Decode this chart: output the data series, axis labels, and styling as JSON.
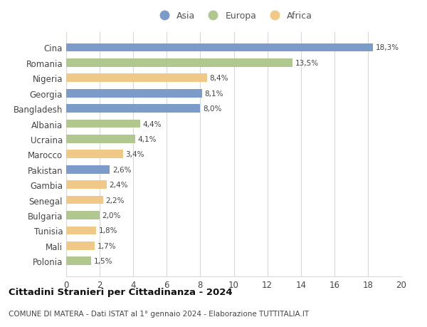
{
  "categories": [
    "Cina",
    "Romania",
    "Nigeria",
    "Georgia",
    "Bangladesh",
    "Albania",
    "Ucraina",
    "Marocco",
    "Pakistan",
    "Gambia",
    "Senegal",
    "Bulgaria",
    "Tunisia",
    "Mali",
    "Polonia"
  ],
  "values": [
    18.3,
    13.5,
    8.4,
    8.1,
    8.0,
    4.4,
    4.1,
    3.4,
    2.6,
    2.4,
    2.2,
    2.0,
    1.8,
    1.7,
    1.5
  ],
  "labels": [
    "18,3%",
    "13,5%",
    "8,4%",
    "8,1%",
    "8,0%",
    "4,4%",
    "4,1%",
    "3,4%",
    "2,6%",
    "2,4%",
    "2,2%",
    "2,0%",
    "1,8%",
    "1,7%",
    "1,5%"
  ],
  "continents": [
    "Asia",
    "Europa",
    "Africa",
    "Asia",
    "Asia",
    "Europa",
    "Europa",
    "Africa",
    "Asia",
    "Africa",
    "Africa",
    "Europa",
    "Africa",
    "Africa",
    "Europa"
  ],
  "colors": {
    "Asia": "#7b9bc8",
    "Europa": "#b0c890",
    "Africa": "#f0c888"
  },
  "xlim": [
    0,
    20
  ],
  "xticks": [
    0,
    2,
    4,
    6,
    8,
    10,
    12,
    14,
    16,
    18,
    20
  ],
  "title": "Cittadini Stranieri per Cittadinanza - 2024",
  "subtitle": "COMUNE DI MATERA - Dati ISTAT al 1° gennaio 2024 - Elaborazione TUTTITALIA.IT",
  "background_color": "#ffffff",
  "grid_color": "#d8d8d8",
  "bar_height": 0.55
}
